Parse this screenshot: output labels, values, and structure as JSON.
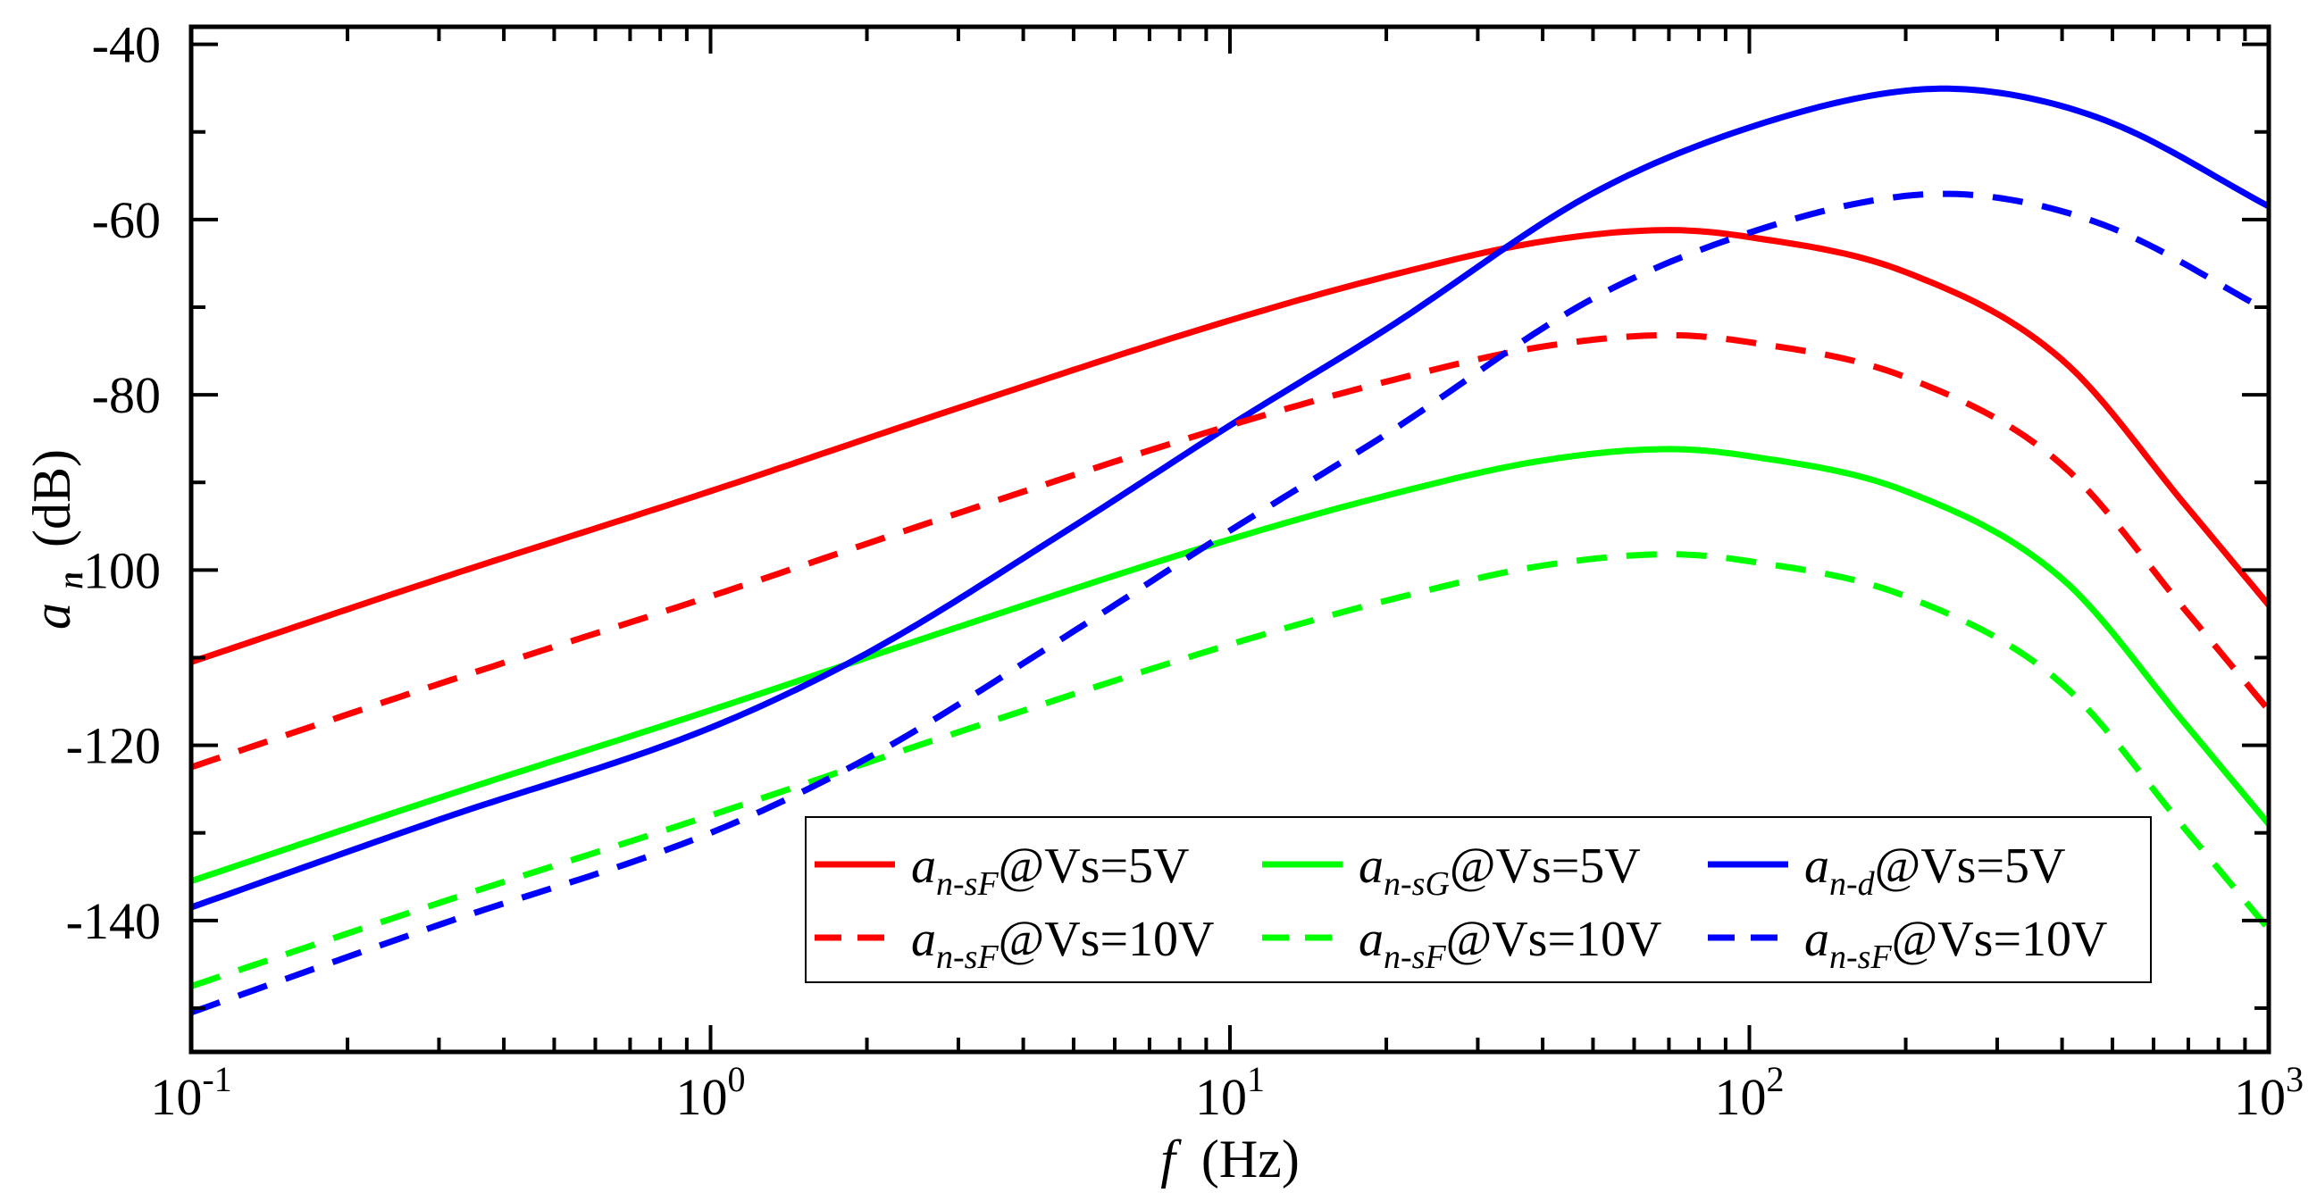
{
  "chart_data": {
    "type": "line",
    "title": "",
    "xlabel": {
      "symbol": "f",
      "unit": "(Hz)"
    },
    "ylabel": {
      "symbol": "a",
      "subscript": "n",
      "unit": "(dB)"
    },
    "xscale": "log",
    "xlim": [
      0.1,
      1000
    ],
    "ylim": [
      -155,
      -38
    ],
    "x_ticks": [
      {
        "base": "10",
        "exp": "-1"
      },
      {
        "base": "10",
        "exp": "0"
      },
      {
        "base": "10",
        "exp": "1"
      },
      {
        "base": "10",
        "exp": "2"
      },
      {
        "base": "10",
        "exp": "3"
      }
    ],
    "y_ticks": [
      "-40",
      "-60",
      "-80",
      "-100",
      "-120",
      "-140"
    ],
    "y_tick_values": [
      -40,
      -60,
      -80,
      -100,
      -120,
      -140
    ],
    "grid": false,
    "legend_position": "lower-right",
    "series": [
      {
        "name": "a_n-sF@Vs=5V",
        "label_main": "a",
        "label_sub": "n-sF",
        "label_rest": "@Vs=5V",
        "color": "#ff0000",
        "style": "solid",
        "x": [
          0.1,
          0.3,
          1,
          3,
          10,
          20,
          40,
          70,
          100,
          200,
          400,
          700,
          1000
        ],
        "y": [
          -110.5,
          -101,
          -91,
          -81.5,
          -71.5,
          -66.5,
          -62.5,
          -61.2,
          -62,
          -66,
          -76,
          -93,
          -104
        ]
      },
      {
        "name": "a_n-sG@Vs=5V",
        "label_main": "a",
        "label_sub": "n-sG",
        "label_rest": "@Vs=5V",
        "color": "#00ff00",
        "style": "solid",
        "x": [
          0.1,
          0.3,
          1,
          3,
          10,
          20,
          40,
          70,
          100,
          200,
          400,
          700,
          1000
        ],
        "y": [
          -135.5,
          -126,
          -116,
          -106.5,
          -96.5,
          -91.5,
          -87.5,
          -86.2,
          -87,
          -91,
          -101,
          -118,
          -129
        ]
      },
      {
        "name": "a_n-d@Vs=5V",
        "label_main": "a",
        "label_sub": "n-d",
        "label_rest": "@Vs=5V",
        "color": "#0000ff",
        "style": "solid",
        "x": [
          0.1,
          0.3,
          1,
          2,
          5,
          10,
          20,
          50,
          100,
          200,
          300,
          500,
          1000
        ],
        "y": [
          -138.5,
          -128.5,
          -118,
          -109.5,
          -95,
          -83.5,
          -72.5,
          -57,
          -49.5,
          -45.3,
          -45.5,
          -49,
          -58.5
        ]
      },
      {
        "name": "a_n-sF@Vs=10V (red dashed)",
        "label_main": "a",
        "label_sub": "n-sF",
        "label_rest": "@Vs=10V",
        "color": "#ff0000",
        "style": "dashed",
        "x": [
          0.1,
          0.3,
          1,
          3,
          10,
          20,
          40,
          70,
          100,
          200,
          400,
          700,
          1000
        ],
        "y": [
          -122.5,
          -113,
          -103,
          -93.5,
          -83.5,
          -78.5,
          -74.5,
          -73.2,
          -74,
          -78,
          -88,
          -105,
          -116
        ]
      },
      {
        "name": "a_n-sF@Vs=10V (green dashed)",
        "label_main": "a",
        "label_sub": "n-sF",
        "label_rest": "@Vs=10V",
        "color": "#00ff00",
        "style": "dashed",
        "x": [
          0.1,
          0.3,
          1,
          3,
          10,
          20,
          40,
          70,
          100,
          200,
          400,
          700,
          1000
        ],
        "y": [
          -147.5,
          -138,
          -128,
          -118.5,
          -108.5,
          -103.5,
          -99.5,
          -98.2,
          -99,
          -103,
          -113,
          -130,
          -141
        ]
      },
      {
        "name": "a_n-sF@Vs=10V (blue dashed)",
        "label_main": "a",
        "label_sub": "n-sF",
        "label_rest": "@Vs=10V",
        "color": "#0000ff",
        "style": "dashed",
        "x": [
          0.1,
          0.3,
          1,
          2,
          5,
          10,
          20,
          50,
          100,
          200,
          300,
          500,
          1000
        ],
        "y": [
          -150.5,
          -140.5,
          -130,
          -121.5,
          -107,
          -95.5,
          -84.5,
          -69,
          -61.5,
          -57.3,
          -57.5,
          -61,
          -70.5
        ]
      }
    ]
  }
}
